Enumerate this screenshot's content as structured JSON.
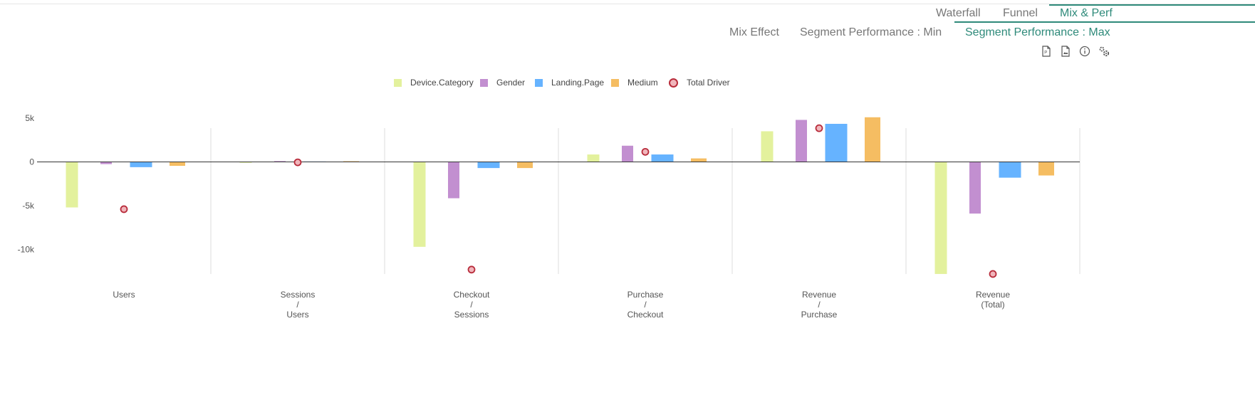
{
  "tabs": [
    {
      "label": "Waterfall",
      "active": false
    },
    {
      "label": "Funnel",
      "active": false
    },
    {
      "label": "Mix & Perf",
      "active": true
    }
  ],
  "subtabs": [
    {
      "label": "Mix Effect",
      "active": false
    },
    {
      "label": "Segment Performance : Min",
      "active": false
    },
    {
      "label": "Segment Performance : Max",
      "active": true
    }
  ],
  "toolbar": {
    "icons": [
      "pdf-export-icon",
      "image-export-icon",
      "info-icon",
      "settings-icon"
    ]
  },
  "colors": {
    "accent": "#2e8a7a",
    "Device.Category": "#e3f19d",
    "Gender": "#c28fd0",
    "Landing.Page": "#66b3ff",
    "Medium": "#f5bd62",
    "Total Driver": "#b82b3a"
  },
  "chart_data": {
    "type": "bar",
    "categories": [
      [
        "Users"
      ],
      [
        "Sessions",
        "/",
        "Users"
      ],
      [
        "Checkout",
        "/",
        "Sessions"
      ],
      [
        "Purchase",
        "/",
        "Checkout"
      ],
      [
        "Revenue",
        "/",
        "Purchase"
      ],
      [
        "Revenue",
        "(Total)"
      ]
    ],
    "series": [
      {
        "name": "Device.Category",
        "values": [
          -5200,
          -100,
          -9700,
          850,
          3500,
          -12800
        ]
      },
      {
        "name": "Gender",
        "values": [
          -250,
          100,
          -4150,
          1850,
          4800,
          -5900
        ]
      },
      {
        "name": "Landing.Page",
        "values": [
          -600,
          50,
          -700,
          850,
          4350,
          -1800
        ]
      },
      {
        "name": "Medium",
        "values": [
          -450,
          80,
          -700,
          400,
          5100,
          -1550
        ]
      }
    ],
    "total_driver": {
      "name": "Total Driver",
      "values": [
        -5400,
        -50,
        -12300,
        1150,
        3850,
        -12800
      ]
    },
    "yticks": [
      {
        "value": 5000,
        "label": "5k"
      },
      {
        "value": 0,
        "label": "0"
      },
      {
        "value": -5000,
        "label": "-5k"
      },
      {
        "value": -10000,
        "label": "-10k"
      }
    ],
    "ylim": [
      -12800,
      5100
    ],
    "legend_position": "top-center",
    "grid": "vertical category separators"
  }
}
